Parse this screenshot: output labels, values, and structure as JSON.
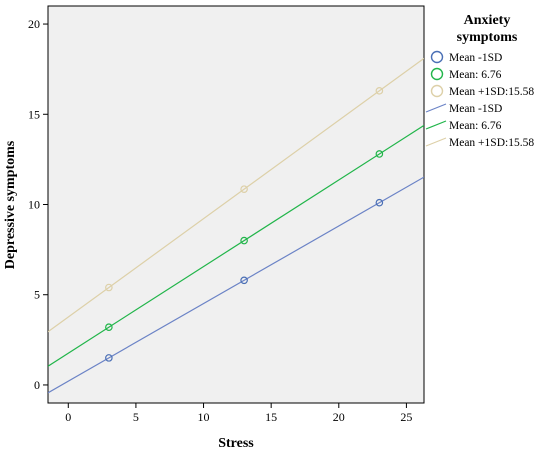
{
  "chart_data": {
    "type": "scatter",
    "xlabel": "Stress",
    "ylabel": "Depressive symptoms",
    "xlim": [
      -1.5,
      26.3
    ],
    "ylim": [
      -1.0,
      21.0
    ],
    "xticks": [
      0,
      5,
      10,
      15,
      20,
      25
    ],
    "yticks": [
      0,
      5,
      10,
      15,
      20
    ],
    "grid": false,
    "background": "#f0f0f0",
    "legend": {
      "title_lines": [
        "Anxiety",
        "symptoms"
      ],
      "position": "right",
      "marker_entries": [
        {
          "label": "Mean -1SD",
          "color": "#4a6fb5"
        },
        {
          "label": "Mean: 6.76",
          "color": "#21b54a"
        },
        {
          "label": "Mean +1SD:15.58",
          "color": "#ddd0a8"
        }
      ],
      "line_entries": [
        {
          "label": "Mean -1SD",
          "color": "#6b83c6"
        },
        {
          "label": "Mean: 6.76",
          "color": "#21b54a"
        },
        {
          "label": "Mean +1SD:15.58",
          "color": "#ddd0a8"
        }
      ]
    },
    "series": [
      {
        "name": "Mean -1SD",
        "color": "#4a6fb5",
        "line_color": "#6b83c6",
        "points": [
          [
            3,
            1.5
          ],
          [
            13,
            5.8
          ],
          [
            23,
            10.1
          ]
        ],
        "fit": {
          "slope": 0.43,
          "intercept": 0.21
        }
      },
      {
        "name": "Mean: 6.76",
        "color": "#21b54a",
        "line_color": "#21b54a",
        "points": [
          [
            3,
            3.2
          ],
          [
            13,
            8.0
          ],
          [
            23,
            12.8
          ]
        ],
        "fit": {
          "slope": 0.48,
          "intercept": 1.76
        }
      },
      {
        "name": "Mean +1SD:15.58",
        "color": "#ddd0a8",
        "line_color": "#ddd0a8",
        "points": [
          [
            3,
            5.4
          ],
          [
            13,
            10.85
          ],
          [
            23,
            16.3
          ]
        ],
        "fit": {
          "slope": 0.545,
          "intercept": 3.765
        }
      }
    ]
  }
}
